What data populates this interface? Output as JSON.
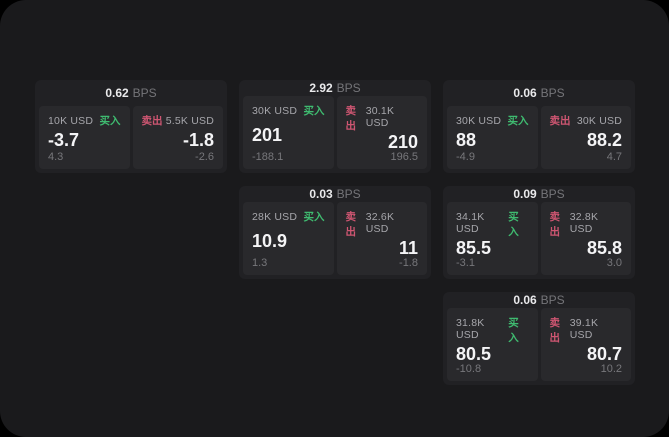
{
  "labels": {
    "buy": "买入",
    "sell": "卖出",
    "bps": "BPS"
  },
  "colors": {
    "buy_green": "#3fbb70",
    "sell_red": "#cf5672",
    "page_bg": "#1a1a1c",
    "card_bg": "#212124",
    "panel_bg": "#29292c"
  },
  "cards": [
    {
      "bps": "0.62",
      "buy": {
        "size": "10K USD",
        "price": "-3.7",
        "delta": "4.3"
      },
      "sell": {
        "size": "5.5K USD",
        "price": "-1.8",
        "delta": "-2.6"
      }
    },
    {
      "bps": "2.92",
      "buy": {
        "size": "30K USD",
        "price": "201",
        "delta": "-188.1"
      },
      "sell": {
        "size": "30.1K USD",
        "price": "210",
        "delta": "196.5"
      }
    },
    {
      "bps": "0.06",
      "buy": {
        "size": "30K USD",
        "price": "88",
        "delta": "-4.9"
      },
      "sell": {
        "size": "30K USD",
        "price": "88.2",
        "delta": "4.7"
      }
    },
    {
      "bps": "0.03",
      "buy": {
        "size": "28K USD",
        "price": "10.9",
        "delta": "1.3"
      },
      "sell": {
        "size": "32.6K USD",
        "price": "11",
        "delta": "-1.8"
      }
    },
    {
      "bps": "0.09",
      "buy": {
        "size": "34.1K USD",
        "price": "85.5",
        "delta": "-3.1"
      },
      "sell": {
        "size": "32.8K USD",
        "price": "85.8",
        "delta": "3.0"
      }
    },
    {
      "bps": "0.06",
      "buy": {
        "size": "31.8K USD",
        "price": "80.5",
        "delta": "-10.8"
      },
      "sell": {
        "size": "39.1K USD",
        "price": "80.7",
        "delta": "10.2"
      }
    }
  ]
}
